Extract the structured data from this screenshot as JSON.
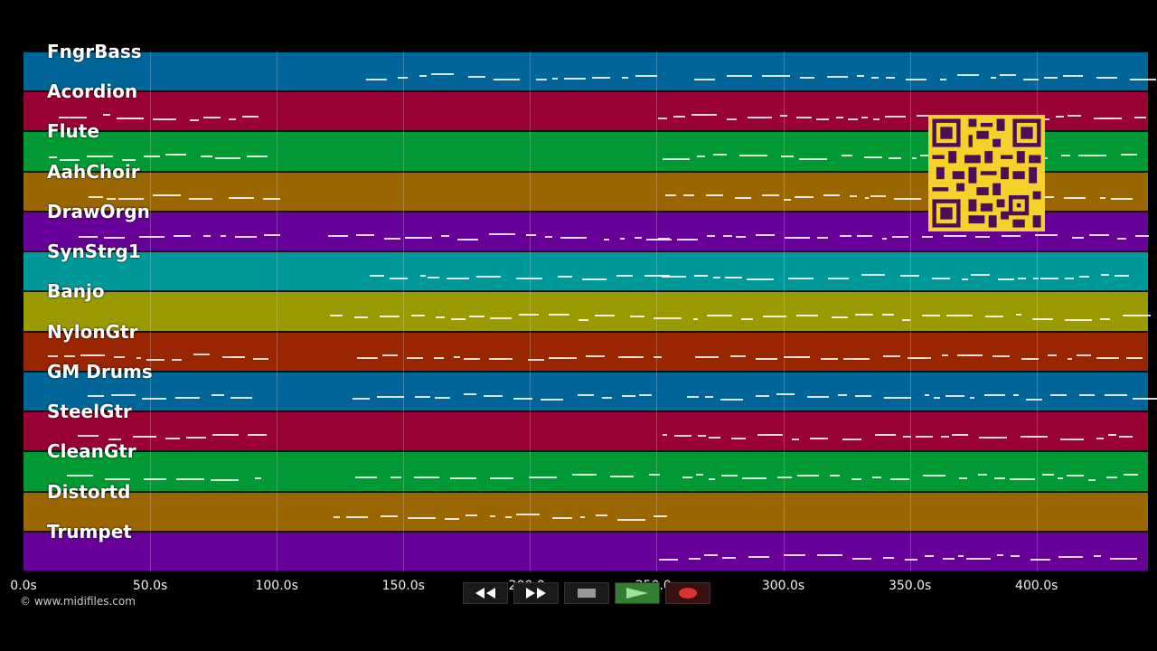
{
  "tracks": [
    {
      "name": "FngrBass",
      "color": "#006699"
    },
    {
      "name": "Acordion",
      "color": "#990033"
    },
    {
      "name": "Flute",
      "color": "#009933"
    },
    {
      "name": "AahChoir",
      "color": "#996600"
    },
    {
      "name": "DrawOrgn",
      "color": "#660099"
    },
    {
      "name": "SynStrg1",
      "color": "#009999"
    },
    {
      "name": "Banjo",
      "color": "#999900"
    },
    {
      "name": "NylonGtr",
      "color": "#992600"
    },
    {
      "name": "GM Drums",
      "color": "#006699"
    },
    {
      "name": "SteelGtr",
      "color": "#990033"
    },
    {
      "name": "CleanGtr",
      "color": "#009933"
    },
    {
      "name": "Distortd",
      "color": "#996600"
    },
    {
      "name": "Trumpet",
      "color": "#660099"
    }
  ],
  "timeline": {
    "ticks": [
      "0.0s",
      "50.0s",
      "100.0s",
      "150.0s",
      "200.0s",
      "250.0s",
      "300.0s",
      "350.0s",
      "400.0s"
    ],
    "max_seconds": 444
  },
  "copyright": "© www.midifiles.com",
  "transport": {
    "rewind_icon": "rewind-icon",
    "forward_icon": "fast-forward-icon",
    "stop_icon": "stop-icon",
    "play_icon": "play-icon",
    "record_icon": "record-icon"
  },
  "qr_icon": "qr-code-icon"
}
